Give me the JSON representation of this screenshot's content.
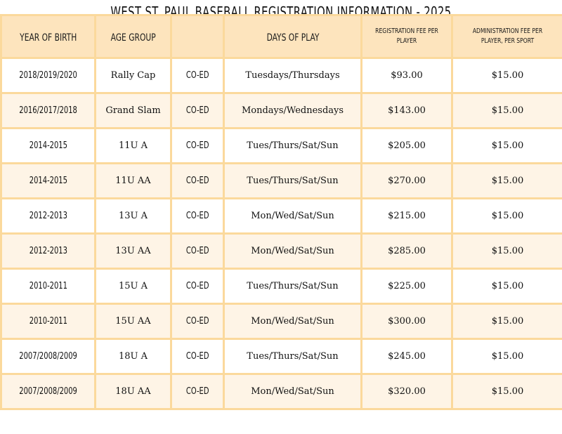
{
  "title": "WEST ST. PAUL BASEBALL REGISTRATION INFORMATION - 2025",
  "headers": {
    "year_of_birth": "YEAR OF BIRTH",
    "age_group": "AGE GROUP",
    "gender": "",
    "days_of_play": "DAYS OF PLAY",
    "registration_fee": "REGISTRATION FEE PER PLAYER",
    "admin_fee": "ADMINISTRATION FEE PER PLAYER, PER SPORT"
  },
  "rows": [
    {
      "year": "2018/2019/2020",
      "age": "Rally Cap",
      "gender": "CO-ED",
      "days": "Tuesdays/Thursdays",
      "reg_fee": "$93.00",
      "admin_fee": "$15.00"
    },
    {
      "year": "2016/2017/2018",
      "age": "Grand Slam",
      "gender": "CO-ED",
      "days": "Mondays/Wednesdays",
      "reg_fee": "$143.00",
      "admin_fee": "$15.00"
    },
    {
      "year": "2014-2015",
      "age": "11U A",
      "gender": "CO-ED",
      "days": "Tues/Thurs/Sat/Sun",
      "reg_fee": "$205.00",
      "admin_fee": "$15.00"
    },
    {
      "year": "2014-2015",
      "age": "11U AA",
      "gender": "CO-ED",
      "days": "Tues/Thurs/Sat/Sun",
      "reg_fee": "$270.00",
      "admin_fee": "$15.00"
    },
    {
      "year": "2012-2013",
      "age": "13U A",
      "gender": "CO-ED",
      "days": "Mon/Wed/Sat/Sun",
      "reg_fee": "$215.00",
      "admin_fee": "$15.00"
    },
    {
      "year": "2012-2013",
      "age": "13U AA",
      "gender": "CO-ED",
      "days": "Mon/Wed/Sat/Sun",
      "reg_fee": "$285.00",
      "admin_fee": "$15.00"
    },
    {
      "year": "2010-2011",
      "age": "15U A",
      "gender": "CO-ED",
      "days": "Tues/Thurs/Sat/Sun",
      "reg_fee": "$225.00",
      "admin_fee": "$15.00"
    },
    {
      "year": "2010-2011",
      "age": "15U AA",
      "gender": "CO-ED",
      "days": "Mon/Wed/Sat/Sun",
      "reg_fee": "$300.00",
      "admin_fee": "$15.00"
    },
    {
      "year": "2007/2008/2009",
      "age": "18U A",
      "gender": "CO-ED",
      "days": "Tues/Thurs/Sat/Sun",
      "reg_fee": "$245.00",
      "admin_fee": "$15.00"
    },
    {
      "year": "2007/2008/2009",
      "age": "18U AA",
      "gender": "CO-ED",
      "days": "Mon/Wed/Sat/Sun",
      "reg_fee": "$320.00",
      "admin_fee": "$15.00"
    }
  ]
}
